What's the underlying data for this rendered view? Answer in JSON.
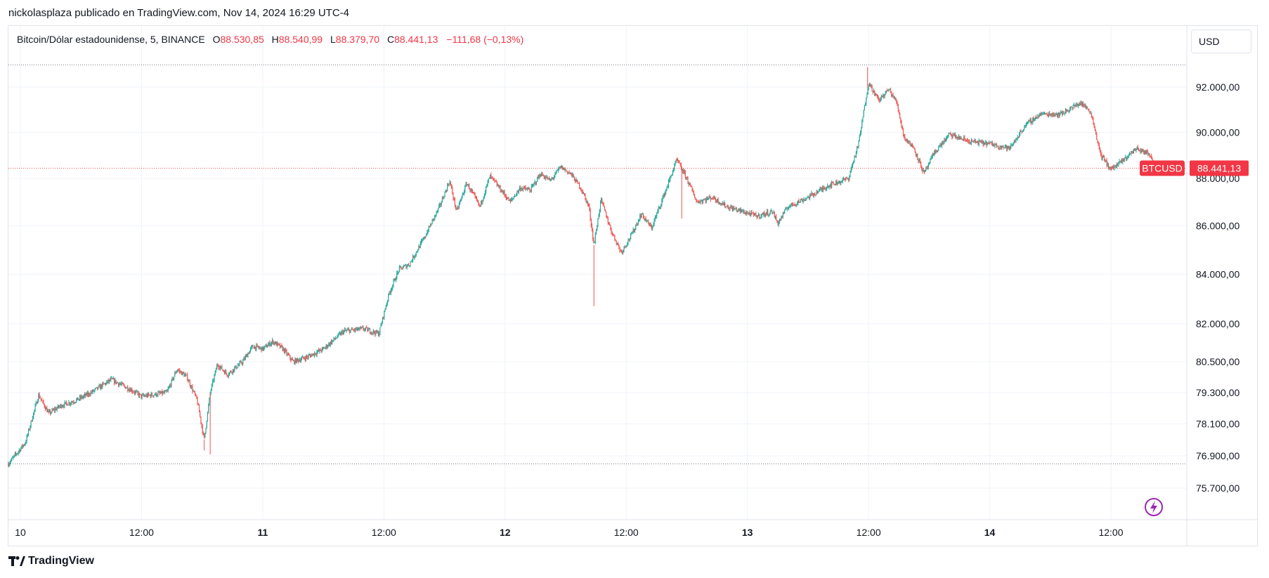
{
  "header": {
    "published_by": "nickolasplaza publicado en TradingView.com, Nov 14, 2024 16:29 UTC-4"
  },
  "legend": {
    "symbol": "Bitcoin/Dólar estadounidense, 5, BINANCE",
    "o_label": "O",
    "o_value": "88.530,85",
    "h_label": "H",
    "h_value": "88.540,99",
    "l_label": "L",
    "l_value": "88.379,70",
    "c_label": "C",
    "c_value": "88.441,13",
    "change": "−111,68 (−0,13%)"
  },
  "currency_button": {
    "label": "USD"
  },
  "footer": {
    "brand": "TradingView"
  },
  "colors": {
    "up": "#26a69a",
    "down": "#ef5350",
    "badge": "#f23645",
    "line_dotted": "#787b86",
    "grid": "#f0f3fa",
    "lightning": "#9c27b0"
  },
  "price_badge": {
    "symbol": "BTCUSD",
    "price": "88.441,13"
  },
  "chart_data": {
    "type": "candlestick",
    "symbol": "BTCUSD",
    "interval": "5",
    "y_ticks": [
      {
        "v": 92000,
        "label": "92.000,00"
      },
      {
        "v": 90000,
        "label": "90.000,00"
      },
      {
        "v": 88000,
        "label": "88.000,00"
      },
      {
        "v": 86000,
        "label": "86.000,00"
      },
      {
        "v": 84000,
        "label": "84.000,00"
      },
      {
        "v": 82000,
        "label": "82.000,00"
      },
      {
        "v": 80500,
        "label": "80.500,00"
      },
      {
        "v": 79300,
        "label": "79.300,00"
      },
      {
        "v": 78100,
        "label": "78.100,00"
      },
      {
        "v": 76900,
        "label": "76.900,00"
      },
      {
        "v": 75700,
        "label": "75.700,00"
      }
    ],
    "x_ticks": [
      {
        "t": 0,
        "label": "10",
        "bold": false
      },
      {
        "t": 12,
        "label": "12:00",
        "bold": false
      },
      {
        "t": 24,
        "label": "11",
        "bold": true
      },
      {
        "t": 36,
        "label": "12:00",
        "bold": false
      },
      {
        "t": 48,
        "label": "12",
        "bold": true
      },
      {
        "t": 60,
        "label": "12:00",
        "bold": false
      },
      {
        "t": 72,
        "label": "13",
        "bold": true
      },
      {
        "t": 84,
        "label": "12:00",
        "bold": false
      },
      {
        "t": 96,
        "label": "14",
        "bold": true
      },
      {
        "t": 108,
        "label": "12:00",
        "bold": false
      }
    ],
    "x_unit": "hours since Nov 10 00:00",
    "y_scale": "log",
    "high_line": 93000,
    "low_line": 76600,
    "last_price": 88441.13,
    "path": [
      [
        -1.2,
        76600
      ],
      [
        0.5,
        77400
      ],
      [
        1.8,
        79200
      ],
      [
        2.8,
        78500
      ],
      [
        4,
        78800
      ],
      [
        5.5,
        79000
      ],
      [
        7,
        79300
      ],
      [
        9,
        79800
      ],
      [
        11,
        79400
      ],
      [
        12,
        79150
      ],
      [
        14.5,
        79300
      ],
      [
        15.5,
        80200
      ],
      [
        16.5,
        79900
      ],
      [
        17.5,
        79000
      ],
      [
        18.2,
        77500
      ],
      [
        18.8,
        79300
      ],
      [
        19.5,
        80400
      ],
      [
        20.5,
        80000
      ],
      [
        22,
        80500
      ],
      [
        23,
        81100
      ],
      [
        24,
        81000
      ],
      [
        25,
        81300
      ],
      [
        26,
        81000
      ],
      [
        27,
        80500
      ],
      [
        28.5,
        80700
      ],
      [
        30,
        81000
      ],
      [
        32,
        81700
      ],
      [
        34,
        81800
      ],
      [
        35.5,
        81600
      ],
      [
        36.5,
        83200
      ],
      [
        37.5,
        84200
      ],
      [
        38.5,
        84400
      ],
      [
        40,
        85500
      ],
      [
        41.5,
        86800
      ],
      [
        42.5,
        87900
      ],
      [
        43.2,
        86600
      ],
      [
        44.2,
        87800
      ],
      [
        45.5,
        86800
      ],
      [
        46.5,
        88100
      ],
      [
        47.8,
        87400
      ],
      [
        48.5,
        87000
      ],
      [
        49.5,
        87600
      ],
      [
        50.5,
        87500
      ],
      [
        51.5,
        88200
      ],
      [
        52.5,
        87900
      ],
      [
        53.5,
        88500
      ],
      [
        54.5,
        88200
      ],
      [
        55.5,
        87600
      ],
      [
        56.3,
        86800
      ],
      [
        56.8,
        85200
      ],
      [
        57.5,
        87100
      ],
      [
        58.5,
        85800
      ],
      [
        59.5,
        84900
      ],
      [
        60.5,
        85600
      ],
      [
        61.5,
        86500
      ],
      [
        62.5,
        85900
      ],
      [
        64,
        87600
      ],
      [
        65,
        88800
      ],
      [
        66,
        88000
      ],
      [
        67,
        87000
      ],
      [
        68.5,
        87200
      ],
      [
        70,
        86800
      ],
      [
        71.5,
        86600
      ],
      [
        73,
        86400
      ],
      [
        74.5,
        86600
      ],
      [
        75,
        86100
      ],
      [
        76,
        86800
      ],
      [
        78,
        87200
      ],
      [
        80,
        87700
      ],
      [
        82,
        88000
      ],
      [
        83,
        89500
      ],
      [
        84,
        92200
      ],
      [
        85,
        91400
      ],
      [
        86,
        91900
      ],
      [
        86.8,
        91300
      ],
      [
        87.5,
        89800
      ],
      [
        88.5,
        89300
      ],
      [
        89.5,
        88200
      ],
      [
        90.5,
        89100
      ],
      [
        92,
        89900
      ],
      [
        94,
        89600
      ],
      [
        96,
        89500
      ],
      [
        98,
        89300
      ],
      [
        99.5,
        90300
      ],
      [
        101,
        90800
      ],
      [
        103,
        90800
      ],
      [
        105,
        91300
      ],
      [
        106,
        90900
      ],
      [
        107,
        89000
      ],
      [
        108,
        88400
      ],
      [
        109,
        88700
      ],
      [
        110.5,
        89300
      ],
      [
        112,
        89000
      ],
      [
        112.3,
        88441
      ]
    ]
  }
}
